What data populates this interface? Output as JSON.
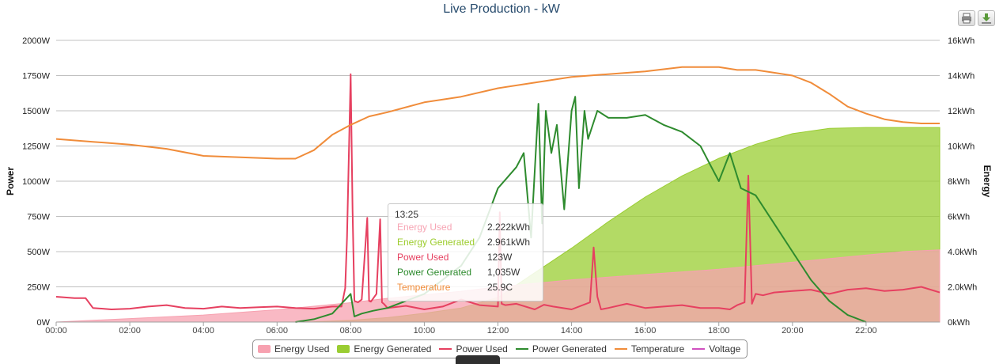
{
  "header": {
    "title": "Live Production -                        kW"
  },
  "toolbar": {
    "print_icon": "printer-icon",
    "download_icon": "download-icon"
  },
  "tooltip": {
    "time": "13:25",
    "rows": [
      {
        "name": "Energy Used",
        "value": "2.222kWh",
        "color": "#f7a5b4"
      },
      {
        "name": "Energy Generated",
        "value": "2.961kWh",
        "color": "#9ccc2c"
      },
      {
        "name": "Power Used",
        "value": "123W",
        "color": "#e64060"
      },
      {
        "name": "Power Generated",
        "value": "1,035W",
        "color": "#2e8b2e"
      },
      {
        "name": "Temperature",
        "value": "25.9C",
        "color": "#f08c3a"
      }
    ]
  },
  "legend": [
    {
      "name": "Energy Used",
      "color": "#f7a1b0",
      "kind": "area"
    },
    {
      "name": "Energy Generated",
      "color": "#9acd32",
      "kind": "area"
    },
    {
      "name": "Power Used",
      "color": "#e64060",
      "kind": "line"
    },
    {
      "name": "Power Generated",
      "color": "#2e8b2e",
      "kind": "line"
    },
    {
      "name": "Temperature",
      "color": "#f08c3a",
      "kind": "line"
    },
    {
      "name": "Voltage",
      "color": "#d050c0",
      "kind": "line"
    }
  ],
  "chart_data": {
    "type": "line",
    "title": "Live Production -                        kW",
    "x_unit": "hours",
    "xlim": [
      0,
      24
    ],
    "x_ticks": [
      "00:00",
      "02:00",
      "04:00",
      "06:00",
      "08:00",
      "10:00",
      "12:00",
      "14:00",
      "16:00",
      "18:00",
      "20:00",
      "22:00"
    ],
    "left_axis": {
      "label": "Power",
      "range": [
        0,
        2000
      ],
      "ticks": [
        "0W",
        "250W",
        "500W",
        "750W",
        "1000W",
        "1250W",
        "1500W",
        "1750W",
        "2000W"
      ]
    },
    "right_axis": {
      "label": "Energy",
      "range": [
        0,
        16
      ],
      "ticks": [
        "0kWh",
        "2.0kWh",
        "4.0kWh",
        "6kWh",
        "8kWh",
        "10kWh",
        "12kWh",
        "14kWh",
        "16kWh"
      ]
    },
    "grid": true,
    "legend_position": "bottom",
    "series": [
      {
        "name": "Energy Used",
        "axis": "right",
        "kind": "area",
        "color": "#f7a1b0",
        "x": [
          0,
          2,
          4,
          6,
          7,
          8,
          9,
          10,
          11,
          12,
          13,
          14,
          15,
          16,
          17,
          18,
          19,
          20,
          21,
          22,
          23,
          24
        ],
        "y": [
          0,
          0.2,
          0.4,
          0.7,
          0.9,
          1.1,
          1.35,
          1.55,
          1.75,
          2.0,
          2.2,
          2.4,
          2.55,
          2.7,
          2.85,
          3.0,
          3.2,
          3.4,
          3.6,
          3.8,
          4.0,
          4.1
        ]
      },
      {
        "name": "Energy Generated",
        "axis": "right",
        "kind": "area",
        "color": "#9acd32",
        "x": [
          6,
          7,
          8,
          9,
          10,
          11,
          12,
          13,
          14,
          15,
          16,
          17,
          18,
          19,
          20,
          21,
          22,
          23,
          24
        ],
        "y": [
          0,
          0.02,
          0.1,
          0.25,
          0.5,
          0.8,
          1.4,
          2.8,
          4.2,
          5.7,
          7.1,
          8.3,
          9.3,
          10.1,
          10.7,
          11.0,
          11.05,
          11.05,
          11.05
        ]
      },
      {
        "name": "Power Used",
        "axis": "left",
        "kind": "line",
        "color": "#e64060",
        "x": [
          0,
          0.5,
          0.8,
          1.0,
          1.5,
          2.0,
          2.5,
          3.0,
          3.5,
          4.0,
          4.5,
          5.0,
          5.5,
          6.0,
          6.5,
          7.0,
          7.5,
          7.75,
          7.85,
          7.9,
          8.0,
          8.05,
          8.1,
          8.2,
          8.3,
          8.45,
          8.5,
          8.55,
          8.7,
          8.8,
          8.85,
          8.9,
          9.0,
          9.5,
          10.0,
          10.5,
          11.0,
          11.5,
          12.0,
          12.05,
          12.1,
          12.2,
          12.5,
          13.0,
          13.25,
          13.5,
          14.0,
          14.5,
          14.6,
          14.7,
          14.8,
          15.0,
          15.5,
          16.0,
          16.5,
          17.0,
          17.5,
          18.0,
          18.3,
          18.5,
          18.7,
          18.8,
          18.9,
          19.0,
          19.2,
          19.5,
          20.0,
          20.5,
          21.0,
          21.5,
          22.0,
          22.5,
          23.0,
          23.5,
          24.0
        ],
        "y": [
          180,
          170,
          170,
          100,
          90,
          95,
          110,
          120,
          100,
          95,
          110,
          100,
          105,
          110,
          100,
          95,
          110,
          110,
          240,
          600,
          1760,
          800,
          150,
          140,
          160,
          740,
          150,
          145,
          200,
          730,
          140,
          130,
          100,
          115,
          90,
          110,
          160,
          120,
          110,
          780,
          130,
          120,
          130,
          90,
          123,
          110,
          90,
          140,
          530,
          180,
          90,
          100,
          130,
          100,
          110,
          120,
          100,
          100,
          90,
          120,
          140,
          1040,
          130,
          200,
          190,
          210,
          220,
          230,
          200,
          230,
          240,
          220,
          230,
          250,
          210
        ]
      },
      {
        "name": "Power Generated",
        "axis": "left",
        "kind": "line",
        "color": "#2e8b2e",
        "x": [
          6.5,
          7,
          7.5,
          8,
          8.1,
          8.3,
          8.6,
          9,
          9.5,
          10,
          10.5,
          11,
          11.5,
          12,
          12.5,
          12.7,
          12.9,
          13.1,
          13.2,
          13.3,
          13.45,
          13.6,
          13.8,
          14.0,
          14.1,
          14.2,
          14.35,
          14.45,
          14.7,
          15.0,
          15.5,
          16.0,
          16.5,
          17.0,
          17.5,
          17.8,
          18.0,
          18.3,
          18.6,
          19.0,
          19.5,
          20.0,
          20.5,
          21.0,
          21.5,
          22.0
        ],
        "y": [
          0,
          20,
          60,
          200,
          40,
          60,
          80,
          100,
          150,
          200,
          300,
          400,
          600,
          950,
          1100,
          1200,
          600,
          1550,
          700,
          1500,
          1200,
          1400,
          800,
          1500,
          1600,
          950,
          1500,
          1300,
          1500,
          1450,
          1450,
          1470,
          1400,
          1350,
          1250,
          1100,
          1000,
          1200,
          950,
          900,
          700,
          500,
          300,
          150,
          50,
          0
        ]
      },
      {
        "name": "Temperature",
        "axis": "left",
        "kind": "line",
        "color": "#f08c3a",
        "x": [
          0,
          1,
          2,
          3,
          4,
          5,
          6,
          6.5,
          7,
          7.5,
          8,
          8.5,
          9,
          10,
          11,
          12,
          13,
          14,
          15,
          16,
          17,
          18,
          18.5,
          19,
          19.5,
          20,
          20.5,
          21,
          21.5,
          22,
          22.5,
          23,
          23.5,
          24
        ],
        "y": [
          1300,
          1280,
          1260,
          1230,
          1180,
          1170,
          1160,
          1160,
          1220,
          1330,
          1400,
          1460,
          1490,
          1560,
          1600,
          1660,
          1700,
          1740,
          1760,
          1780,
          1810,
          1810,
          1790,
          1790,
          1770,
          1750,
          1700,
          1620,
          1530,
          1480,
          1440,
          1420,
          1410,
          1410
        ]
      },
      {
        "name": "Voltage",
        "axis": "left",
        "kind": "line",
        "color": "#d050c0",
        "x": [],
        "y": []
      }
    ]
  }
}
